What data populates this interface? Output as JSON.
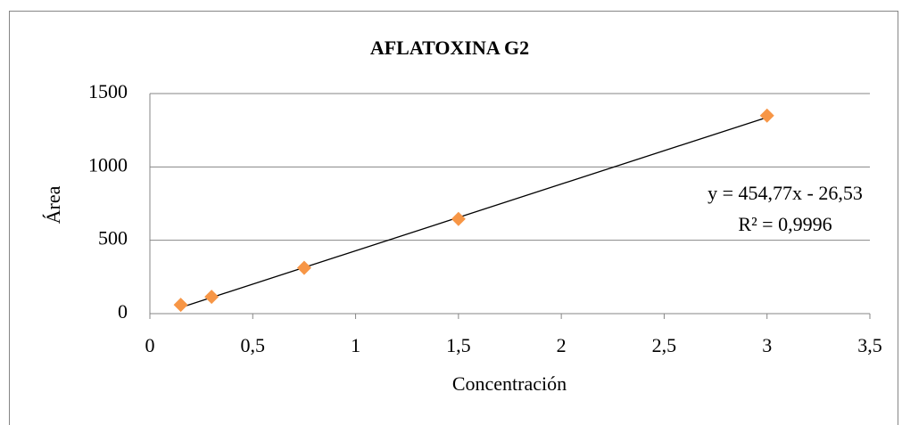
{
  "chart_data": {
    "type": "scatter",
    "title": "AFLATOXINA G2",
    "x_label": "Concentración",
    "y_label": "Área",
    "x": [
      0.15,
      0.3,
      0.75,
      1.5,
      3
    ],
    "series": [
      {
        "color": "#f79646",
        "values": [
          60,
          115,
          312,
          645,
          1350
        ]
      }
    ],
    "trendline": {
      "color": "#000000",
      "x": [
        0.15,
        3
      ],
      "values": [
        41.7,
        1337.8
      ],
      "equation": "y = 454,77x - 26,53",
      "r2": "R² = 0,9996"
    },
    "xlim": [
      0,
      3.5
    ],
    "xticks": [
      0,
      {
        "value": 0.5,
        "label": "0,5"
      },
      1,
      {
        "value": 1.5,
        "label": "1,5"
      },
      2,
      {
        "value": 2.5,
        "label": "2,5"
      },
      3,
      {
        "value": 3.5,
        "label": "3,5"
      }
    ],
    "ylim": [
      0,
      1500
    ],
    "yticks": [
      0,
      500,
      1000,
      1500
    ],
    "grid": true
  }
}
